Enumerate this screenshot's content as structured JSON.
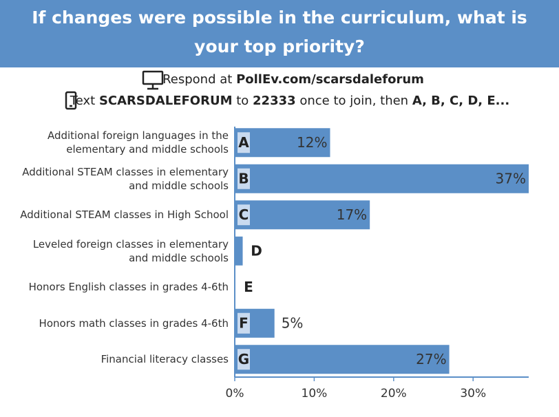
{
  "chart_data": {
    "type": "bar",
    "orientation": "horizontal",
    "title": "If changes were possible in the curriculum, what is your top priority?",
    "respond": {
      "prefix": "Respond at ",
      "url": "PollEv.com/scarsdaleforum"
    },
    "text": {
      "p1": "Text ",
      "code": "SCARSDALEFORUM",
      "p2": " to ",
      "number": "22333",
      "p3": " once to join, then ",
      "options": "A, B, C, D, E..."
    },
    "categories": [
      "Additional foreign languages in the elementary and middle schools",
      "Additional STEAM classes in elementary and middle schools",
      "Additional STEAM classes in High School",
      "Leveled foreign classes in elementary and middle schools",
      "Honors English classes in grades 4-6th",
      "Honors math classes in grades 4-6th",
      "Financial literacy classes"
    ],
    "letters": [
      "A",
      "B",
      "C",
      "D",
      "E",
      "F",
      "G"
    ],
    "values": [
      12,
      37,
      17,
      1,
      0,
      5,
      27
    ],
    "value_labels": [
      "12%",
      "37%",
      "17%",
      null,
      null,
      "5%",
      "27%"
    ],
    "color": "#5b8fc7",
    "xlim": [
      0,
      37
    ],
    "xticks": [
      {
        "value": 0,
        "label": "0%"
      },
      {
        "value": 10,
        "label": "10%"
      },
      {
        "value": 20,
        "label": "20%"
      },
      {
        "value": 30,
        "label": "30%"
      }
    ]
  }
}
